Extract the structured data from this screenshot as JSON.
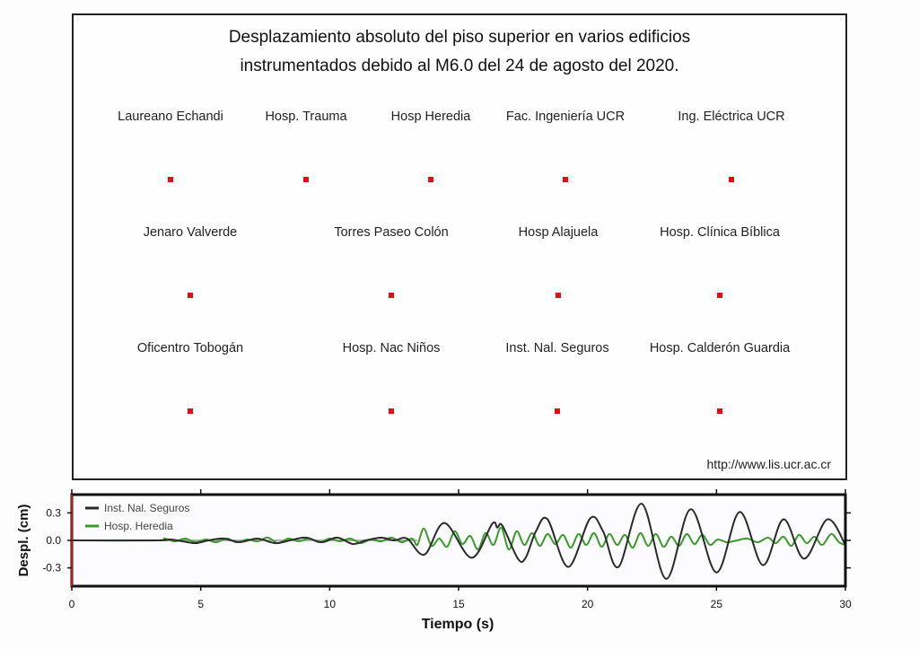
{
  "map": {
    "title_line1": "Desplazamiento absoluto del piso superior en varios edificios",
    "title_line2": "instrumentados debido al M6.0 del 24 de agosto del 2020.",
    "url": "http://www.lis.ucr.ac.cr",
    "marker_color": "#e01010",
    "stations": [
      {
        "name": "Laureano Echandi"
      },
      {
        "name": "Hosp. Trauma"
      },
      {
        "name": "Hosp Heredia"
      },
      {
        "name": "Fac. Ingeniería UCR"
      },
      {
        "name": "Ing. Eléctrica UCR"
      },
      {
        "name": "Jenaro Valverde"
      },
      {
        "name": "Torres Paseo Colón"
      },
      {
        "name": "Hosp Alajuela"
      },
      {
        "name": "Hosp. Clínica Bíblica"
      },
      {
        "name": "Oficentro Tobogán"
      },
      {
        "name": "Hosp. Nac Niños"
      },
      {
        "name": "Inst. Nal. Seguros"
      },
      {
        "name": "Hosp. Calderón Guardia"
      }
    ]
  },
  "chart_data": {
    "type": "line",
    "title": "",
    "xlabel": "Tiempo (s)",
    "ylabel": "Despl. (cm)",
    "xlim": [
      0,
      30
    ],
    "ylim": [
      -0.5,
      0.5
    ],
    "xticks": [
      "0",
      "5",
      "10",
      "15",
      "20",
      "25",
      "30"
    ],
    "xtick_values": [
      0,
      5,
      10,
      15,
      20,
      25,
      30
    ],
    "yticks": [
      "0.3",
      "0.0",
      "-0.3"
    ],
    "ytick_values": [
      0.3,
      0.0,
      -0.3
    ],
    "legend_position": "top-left",
    "series": [
      {
        "name": "Inst. Nal. Seguros",
        "color": "#2a2a2a",
        "points": [
          [
            0,
            0
          ],
          [
            3.3,
            0
          ],
          [
            3.8,
            0.01
          ],
          [
            4.3,
            -0.01
          ],
          [
            4.8,
            -0.03
          ],
          [
            5.3,
            0
          ],
          [
            5.9,
            0.02
          ],
          [
            6.5,
            -0.02
          ],
          [
            7.2,
            0.02
          ],
          [
            7.9,
            -0.03
          ],
          [
            8.6,
            0.01
          ],
          [
            9.1,
            0.03
          ],
          [
            9.7,
            -0.02
          ],
          [
            10.3,
            0.03
          ],
          [
            10.9,
            -0.04
          ],
          [
            11.4,
            0
          ],
          [
            12.0,
            0.03
          ],
          [
            12.5,
            0
          ],
          [
            13.0,
            0.02
          ],
          [
            13.68,
            -0.155
          ],
          [
            14.45,
            0.19
          ],
          [
            15.5,
            -0.19
          ],
          [
            16.3,
            0.18
          ],
          [
            16.5,
            0.14
          ],
          [
            16.7,
            0.16
          ],
          [
            17.3,
            -0.2
          ],
          [
            17.6,
            -0.19
          ],
          [
            18.0,
            0.1
          ],
          [
            18.45,
            0.23
          ],
          [
            19.25,
            -0.29
          ],
          [
            20.1,
            0.24
          ],
          [
            20.6,
            0.1
          ],
          [
            21.2,
            -0.29
          ],
          [
            22.1,
            0.4
          ],
          [
            23.05,
            -0.42
          ],
          [
            24.0,
            0.34
          ],
          [
            25.0,
            -0.35
          ],
          [
            25.9,
            0.31
          ],
          [
            26.8,
            -0.27
          ],
          [
            27.6,
            0.23
          ],
          [
            28.4,
            -0.2
          ],
          [
            29.3,
            0.23
          ],
          [
            30,
            -0.05
          ]
        ]
      },
      {
        "name": "Hosp. Heredia",
        "color": "#3a9a2a",
        "points": [
          [
            0,
            0
          ],
          [
            3.3,
            0
          ],
          [
            3.6,
            0.02
          ],
          [
            4.0,
            -0.01
          ],
          [
            4.4,
            0.02
          ],
          [
            4.8,
            -0.02
          ],
          [
            5.2,
            0.01
          ],
          [
            5.6,
            -0.02
          ],
          [
            6.0,
            0.02
          ],
          [
            6.4,
            -0.02
          ],
          [
            6.8,
            0.01
          ],
          [
            7.2,
            -0.01
          ],
          [
            7.6,
            0.03
          ],
          [
            8.0,
            -0.03
          ],
          [
            8.4,
            0.02
          ],
          [
            8.8,
            -0.01
          ],
          [
            9.2,
            0.02
          ],
          [
            9.6,
            -0.02
          ],
          [
            10.0,
            0.02
          ],
          [
            10.4,
            -0.01
          ],
          [
            10.8,
            0.02
          ],
          [
            11.2,
            -0.03
          ],
          [
            11.6,
            0.01
          ],
          [
            12.0,
            -0.01
          ],
          [
            12.4,
            0.03
          ],
          [
            12.8,
            -0.02
          ],
          [
            13.2,
            0.02
          ],
          [
            13.4,
            -0.05
          ],
          [
            13.65,
            0.13
          ],
          [
            13.95,
            -0.06
          ],
          [
            14.25,
            0.02
          ],
          [
            14.55,
            -0.07
          ],
          [
            14.85,
            0.1
          ],
          [
            15.15,
            -0.04
          ],
          [
            15.45,
            0.05
          ],
          [
            15.75,
            -0.1
          ],
          [
            16.05,
            0.08
          ],
          [
            16.35,
            -0.05
          ],
          [
            16.65,
            0.14
          ],
          [
            16.95,
            -0.1
          ],
          [
            17.25,
            0.1
          ],
          [
            17.55,
            -0.05
          ],
          [
            17.85,
            0.08
          ],
          [
            18.15,
            -0.06
          ],
          [
            18.45,
            0.07
          ],
          [
            18.75,
            -0.04
          ],
          [
            19.05,
            0.06
          ],
          [
            19.35,
            -0.08
          ],
          [
            19.65,
            0.07
          ],
          [
            19.95,
            -0.05
          ],
          [
            20.25,
            0.08
          ],
          [
            20.55,
            -0.07
          ],
          [
            20.85,
            0.07
          ],
          [
            21.15,
            -0.05
          ],
          [
            21.45,
            0.06
          ],
          [
            21.75,
            -0.08
          ],
          [
            22.05,
            0.08
          ],
          [
            22.35,
            -0.06
          ],
          [
            22.65,
            0.07
          ],
          [
            22.95,
            -0.07
          ],
          [
            23.25,
            0.04
          ],
          [
            23.55,
            -0.06
          ],
          [
            23.85,
            0.07
          ],
          [
            24.15,
            -0.04
          ],
          [
            24.45,
            0.06
          ],
          [
            24.75,
            -0.05
          ],
          [
            25.05,
            0.01
          ],
          [
            25.4,
            -0.02
          ],
          [
            25.8,
            0.0
          ],
          [
            26.2,
            0.02
          ],
          [
            26.6,
            -0.02
          ],
          [
            27.0,
            0.03
          ],
          [
            27.3,
            -0.03
          ],
          [
            27.6,
            0.04
          ],
          [
            27.9,
            -0.06
          ],
          [
            28.2,
            0.06
          ],
          [
            28.5,
            -0.03
          ],
          [
            28.8,
            0.04
          ],
          [
            29.1,
            -0.05
          ],
          [
            29.45,
            0.07
          ],
          [
            29.75,
            -0.02
          ],
          [
            30,
            -0.05
          ]
        ]
      }
    ]
  }
}
